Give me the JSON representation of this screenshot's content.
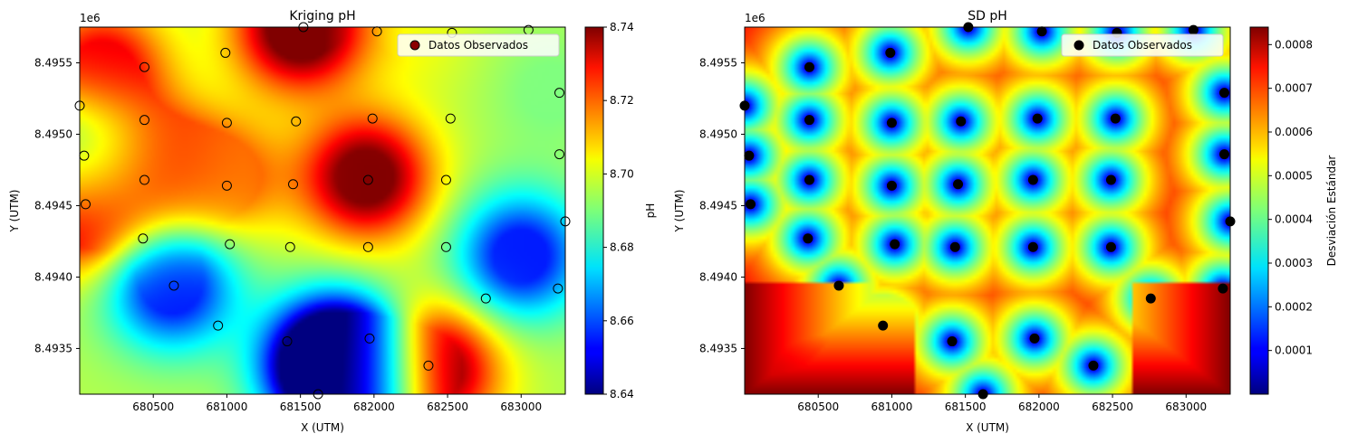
{
  "chart_data": [
    {
      "type": "heatmap",
      "title": "Kriging pH",
      "xlabel": "X (UTM)",
      "ylabel": "Y (UTM)",
      "offset_label": "1e6",
      "xlim": [
        680000,
        683300
      ],
      "ylim": [
        8.49318,
        8.49575
      ],
      "x_ticks": [
        680500,
        681000,
        681500,
        682000,
        682500,
        683000
      ],
      "y_ticks": [
        8.4935,
        8.494,
        8.4945,
        8.495,
        8.4955
      ],
      "colormap": "jet",
      "colorbar": {
        "label": "pH",
        "min": 8.64,
        "max": 8.74,
        "ticks": [
          8.64,
          8.66,
          8.68,
          8.7,
          8.72,
          8.74
        ]
      },
      "legend": {
        "label": "Datos Observados",
        "position": "top-right",
        "marker_color": "#8b0000"
      },
      "surface_centers": [
        {
          "x": 680150,
          "y": 8.49545,
          "value": 8.73
        },
        {
          "x": 680500,
          "y": 8.4948,
          "value": 8.725
        },
        {
          "x": 681000,
          "y": 8.4947,
          "value": 8.715
        },
        {
          "x": 681500,
          "y": 8.49575,
          "value": 8.745
        },
        {
          "x": 680000,
          "y": 8.4945,
          "value": 8.74
        },
        {
          "x": 680000,
          "y": 8.49485,
          "value": 8.67
        },
        {
          "x": 681950,
          "y": 8.4947,
          "value": 8.74
        },
        {
          "x": 680630,
          "y": 8.49393,
          "value": 8.655
        },
        {
          "x": 681700,
          "y": 8.4934,
          "value": 8.625
        },
        {
          "x": 681900,
          "y": 8.4933,
          "value": 8.64
        },
        {
          "x": 682380,
          "y": 8.49335,
          "value": 8.745
        },
        {
          "x": 683000,
          "y": 8.49415,
          "value": 8.655
        },
        {
          "x": 682300,
          "y": 8.4957,
          "value": 8.7
        },
        {
          "x": 683200,
          "y": 8.4953,
          "value": 8.69
        }
      ],
      "surface_base": 8.695
    },
    {
      "type": "heatmap",
      "title": "SD pH",
      "xlabel": "X (UTM)",
      "ylabel": "Y (UTM)",
      "offset_label": "1e6",
      "xlim": [
        680000,
        683300
      ],
      "ylim": [
        8.49318,
        8.49575
      ],
      "x_ticks": [
        680500,
        681000,
        681500,
        682000,
        682500,
        683000
      ],
      "y_ticks": [
        8.4935,
        8.494,
        8.4945,
        8.495,
        8.4955
      ],
      "colormap": "jet",
      "colorbar": {
        "label": "Desviación Estándar",
        "min": 0.0,
        "max": 0.00084,
        "ticks": [
          0.0001,
          0.0002,
          0.0003,
          0.0004,
          0.0005,
          0.0006,
          0.0007,
          0.0008
        ]
      },
      "legend": {
        "label": "Datos Observados",
        "position": "top-right",
        "marker_color": "#000000"
      }
    }
  ],
  "observed_points": [
    {
      "x": 681520,
      "y": 8.49575,
      "ph": 8.74
    },
    {
      "x": 682020,
      "y": 8.49572,
      "ph": 8.7
    },
    {
      "x": 682530,
      "y": 8.49571,
      "ph": 8.7
    },
    {
      "x": 683050,
      "y": 8.49573,
      "ph": 8.7
    },
    {
      "x": 680440,
      "y": 8.49547,
      "ph": 8.73
    },
    {
      "x": 680990,
      "y": 8.49557,
      "ph": 8.72
    },
    {
      "x": 680000,
      "y": 8.4952,
      "ph": 8.72
    },
    {
      "x": 680440,
      "y": 8.4951,
      "ph": 8.72
    },
    {
      "x": 681000,
      "y": 8.49508,
      "ph": 8.71
    },
    {
      "x": 681470,
      "y": 8.49509,
      "ph": 8.68
    },
    {
      "x": 681990,
      "y": 8.49511,
      "ph": 8.7
    },
    {
      "x": 682520,
      "y": 8.49511,
      "ph": 8.7
    },
    {
      "x": 683260,
      "y": 8.49529,
      "ph": 8.69
    },
    {
      "x": 680030,
      "y": 8.49485,
      "ph": 8.68
    },
    {
      "x": 680440,
      "y": 8.49468,
      "ph": 8.72
    },
    {
      "x": 681000,
      "y": 8.49464,
      "ph": 8.71
    },
    {
      "x": 681450,
      "y": 8.49465,
      "ph": 8.7
    },
    {
      "x": 681960,
      "y": 8.49468,
      "ph": 8.73
    },
    {
      "x": 682490,
      "y": 8.49468,
      "ph": 8.69
    },
    {
      "x": 683260,
      "y": 8.49486,
      "ph": 8.69
    },
    {
      "x": 680040,
      "y": 8.49451,
      "ph": 8.73
    },
    {
      "x": 683300,
      "y": 8.49439,
      "ph": 8.66
    },
    {
      "x": 680430,
      "y": 8.49427,
      "ph": 8.7
    },
    {
      "x": 681020,
      "y": 8.49423,
      "ph": 8.7
    },
    {
      "x": 681430,
      "y": 8.49421,
      "ph": 8.69
    },
    {
      "x": 681960,
      "y": 8.49421,
      "ph": 8.7
    },
    {
      "x": 682490,
      "y": 8.49421,
      "ph": 8.68
    },
    {
      "x": 680640,
      "y": 8.49394,
      "ph": 8.66
    },
    {
      "x": 682760,
      "y": 8.49385,
      "ph": 8.67
    },
    {
      "x": 683250,
      "y": 8.49392,
      "ph": 8.67
    },
    {
      "x": 680940,
      "y": 8.49366,
      "ph": 8.69
    },
    {
      "x": 681410,
      "y": 8.49355,
      "ph": 8.68
    },
    {
      "x": 681970,
      "y": 8.49357,
      "ph": 8.66
    },
    {
      "x": 682370,
      "y": 8.49338,
      "ph": 8.74
    },
    {
      "x": 681620,
      "y": 8.49318,
      "ph": 8.65
    }
  ]
}
